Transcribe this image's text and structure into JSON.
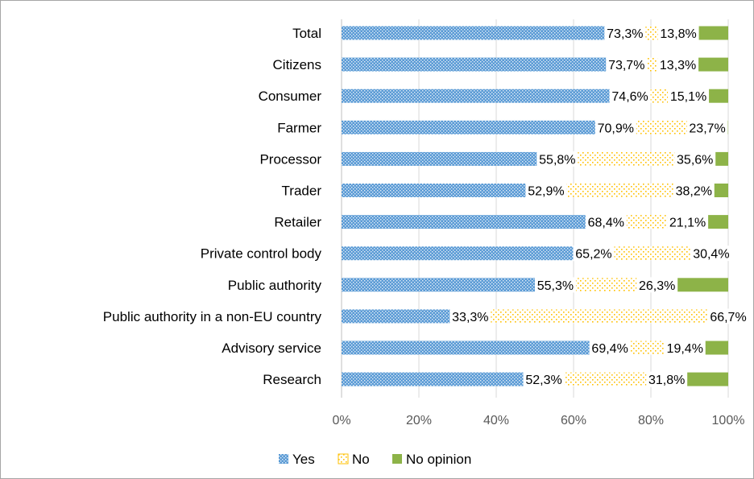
{
  "chart_data": {
    "type": "bar",
    "orientation": "horizontal",
    "stacked": "percent",
    "title": "",
    "xlabel": "",
    "ylabel": "",
    "xlim": [
      0,
      100
    ],
    "x_ticks": [
      "0%",
      "20%",
      "40%",
      "60%",
      "80%",
      "100%"
    ],
    "grid": "vertical",
    "legend_position": "bottom",
    "categories": [
      "Total",
      "Citizens",
      "Consumer",
      "Farmer",
      "Processor",
      "Trader",
      "Retailer",
      "Private control body",
      "Public authority",
      "Public authority in a non-EU country",
      "Advisory service",
      "Research"
    ],
    "series": [
      {
        "name": "Yes",
        "color": "#5B9BD5",
        "pattern": "dense-dots",
        "values": [
          73.3,
          73.7,
          74.6,
          70.9,
          55.8,
          52.9,
          68.4,
          65.2,
          55.3,
          33.3,
          69.4,
          52.3
        ],
        "labels": [
          "73,3%",
          "73,7%",
          "74,6%",
          "70,9%",
          "55,8%",
          "52,9%",
          "68,4%",
          "65,2%",
          "55,3%",
          "33,3%",
          "69,4%",
          "52,3%"
        ]
      },
      {
        "name": "No",
        "color": "#FFC000",
        "pattern": "sparse-dots",
        "values": [
          13.8,
          13.3,
          15.1,
          23.7,
          35.6,
          38.2,
          21.1,
          30.4,
          26.3,
          66.7,
          19.4,
          31.8
        ],
        "labels": [
          "13,8%",
          "13,3%",
          "15,1%",
          "23,7%",
          "35,6%",
          "38,2%",
          "21,1%",
          "30,4%",
          "26,3%",
          "66,7%",
          "19,4%",
          "31,8%"
        ]
      },
      {
        "name": "No opinion",
        "color": "#8DB348",
        "pattern": "solid",
        "values": [
          12.9,
          13.0,
          10.3,
          5.4,
          8.6,
          8.9,
          10.5,
          4.4,
          18.4,
          0.0,
          11.2,
          15.9
        ]
      }
    ]
  }
}
